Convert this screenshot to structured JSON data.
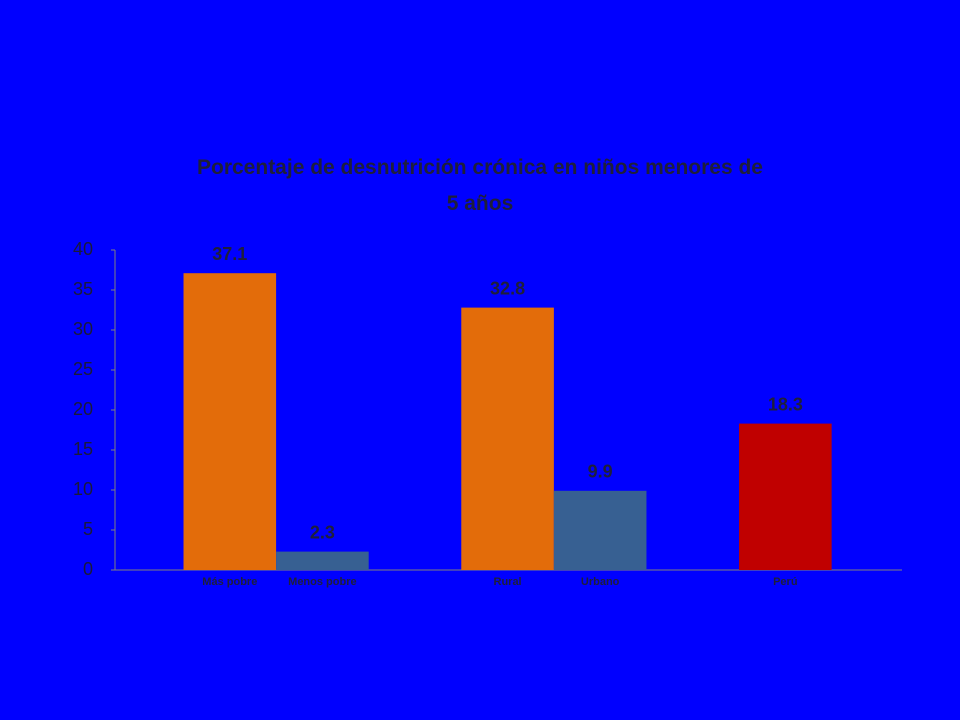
{
  "chart_data": {
    "type": "bar",
    "title": "Porcentaje de desnutrición crónica en niños menores de 5 años",
    "categories": [
      "Más pobre",
      "Menos pobre",
      "Rural",
      "Urbano",
      "Perú"
    ],
    "values": [
      37.1,
      2.3,
      32.8,
      9.9,
      18.3
    ],
    "colors": [
      "#e36c0a",
      "#376092",
      "#e36c0a",
      "#376092",
      "#c00000"
    ],
    "ylim": [
      0,
      40
    ],
    "yticks": [
      0,
      5,
      10,
      15,
      20,
      25,
      30,
      35,
      40
    ],
    "grid": false
  }
}
